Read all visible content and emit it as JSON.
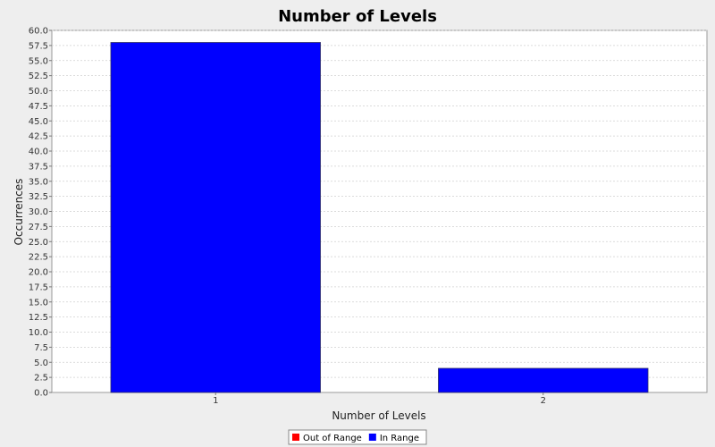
{
  "chart_data": {
    "type": "bar",
    "title": "Number of Levels",
    "xlabel": "Number of Levels",
    "ylabel": "Occurrences",
    "categories": [
      "1",
      "2"
    ],
    "series": [
      {
        "name": "In Range",
        "values": [
          58,
          4
        ],
        "color": "#0000ff"
      }
    ],
    "ylim": [
      0,
      60
    ],
    "ytick_step": 2.5,
    "grid": true,
    "legend": {
      "placement": "bottom-center",
      "entries": [
        {
          "label": "Out of Range",
          "color": "#ff0000"
        },
        {
          "label": "In Range",
          "color": "#0000ff"
        }
      ]
    }
  }
}
